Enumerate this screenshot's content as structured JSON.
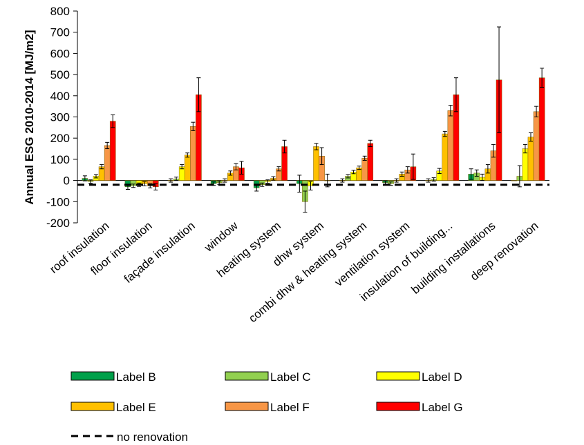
{
  "chart_data": {
    "type": "bar",
    "ylabel": "Annual ESG 2010-2014 [MJ/m2]",
    "xlabel": "",
    "ylim": [
      -200,
      800
    ],
    "yticks": [
      800,
      700,
      600,
      500,
      400,
      300,
      200,
      100,
      0,
      -100,
      -200
    ],
    "grid": false,
    "legend_position": "bottom",
    "categories": [
      "roof insulation",
      "floor insulation",
      "façade insulation",
      "window",
      "heating system",
      "dhw system",
      "combi dhw & heating system",
      "ventilation system",
      "insulation of building...",
      "building installations",
      "deep renovation"
    ],
    "series": [
      {
        "name": "Label B",
        "color": "#00a04a",
        "values": [
          10,
          -30,
          0,
          -15,
          -35,
          -15,
          0,
          -10,
          0,
          30,
          0
        ],
        "error": [
          12,
          12,
          8,
          8,
          15,
          40,
          8,
          8,
          8,
          25,
          0
        ]
      },
      {
        "name": "Label C",
        "color": "#92d050",
        "values": [
          -5,
          -25,
          8,
          -10,
          -20,
          -100,
          20,
          -15,
          5,
          35,
          20
        ],
        "error": [
          8,
          8,
          8,
          8,
          8,
          50,
          8,
          8,
          8,
          15,
          50
        ]
      },
      {
        "name": "Label D",
        "color": "#ffff00",
        "values": [
          20,
          -20,
          65,
          0,
          -5,
          -25,
          40,
          0,
          45,
          15,
          150
        ],
        "error": [
          8,
          8,
          10,
          8,
          8,
          20,
          8,
          8,
          12,
          15,
          20
        ]
      },
      {
        "name": "Label E",
        "color": "#ffc000",
        "values": [
          65,
          -15,
          120,
          35,
          10,
          160,
          60,
          30,
          220,
          55,
          205
        ],
        "error": [
          10,
          10,
          10,
          10,
          8,
          15,
          8,
          10,
          12,
          20,
          20
        ]
      },
      {
        "name": "Label F",
        "color": "#f79646",
        "values": [
          165,
          -25,
          255,
          65,
          55,
          115,
          105,
          50,
          330,
          140,
          325
        ],
        "error": [
          15,
          10,
          20,
          15,
          10,
          40,
          10,
          15,
          25,
          30,
          25
        ]
      },
      {
        "name": "Label G",
        "color": "#ff0000",
        "values": [
          280,
          -30,
          405,
          60,
          160,
          0,
          175,
          65,
          405,
          475,
          485
        ],
        "error": [
          30,
          15,
          80,
          30,
          30,
          30,
          15,
          60,
          80,
          250,
          45
        ]
      }
    ],
    "reference_line": {
      "name": "no renovation",
      "value": -20,
      "style": "dashed",
      "color": "#000000"
    },
    "legend": [
      {
        "label": "Label B",
        "color": "#00a04a",
        "kind": "bar"
      },
      {
        "label": "Label C",
        "color": "#92d050",
        "kind": "bar"
      },
      {
        "label": "Label D",
        "color": "#ffff00",
        "kind": "bar"
      },
      {
        "label": "Label E",
        "color": "#ffc000",
        "kind": "bar"
      },
      {
        "label": "Label F",
        "color": "#f79646",
        "kind": "bar"
      },
      {
        "label": "Label G",
        "color": "#ff0000",
        "kind": "bar"
      },
      {
        "label": "no renovation",
        "color": "#000000",
        "kind": "dashed-line"
      }
    ]
  }
}
